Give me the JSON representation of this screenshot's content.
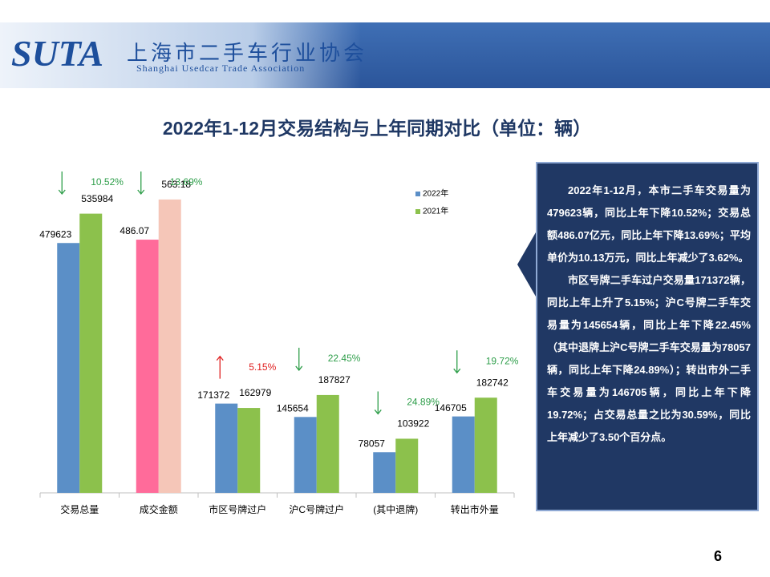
{
  "header": {
    "logo": "SUTA",
    "name": "上海市二手车行业协会",
    "name_en": "Shanghai Usedcar Trade Association"
  },
  "chart_data": {
    "type": "bar",
    "title": "2022年1-12月交易结构与上年同期对比（单位：辆）",
    "categories": [
      "交易总量",
      "成交金额",
      "市区号牌过户",
      "沪C号牌过户",
      "(其中退牌)",
      "转出市外量"
    ],
    "series": [
      {
        "name": "2022年",
        "color": "#5b8fc7",
        "values": [
          479623,
          null,
          171372,
          145654,
          78057,
          146705
        ]
      },
      {
        "name": "2021年",
        "color": "#8cc14c",
        "values": [
          535984,
          null,
          162979,
          187827,
          103922,
          182742
        ]
      },
      {
        "axis": "y2",
        "color": "#ff6b9a",
        "values": [
          null,
          486.07,
          null,
          null,
          null,
          null
        ]
      },
      {
        "axis": "y2",
        "color": "#f5c6b8",
        "values": [
          null,
          563.18,
          null,
          null,
          null,
          null
        ]
      }
    ],
    "ylim": [
      0,
      600000
    ],
    "y2lim": [
      0,
      600
    ],
    "change_labels": [
      "10.52%",
      "13.69%",
      "5.15%",
      "22.45%",
      "24.89%",
      "19.72%"
    ],
    "change_directions": [
      "down",
      "down",
      "up",
      "down",
      "down",
      "down"
    ],
    "change_colors": [
      "#2e9e4a",
      "#2e9e4a",
      "#e02020",
      "#2e9e4a",
      "#2e9e4a",
      "#2e9e4a"
    ]
  },
  "note": {
    "paragraphs": [
      "2022年1-12月，本市二手车交易量为479623辆，同比上年下降10.52%；交易总额486.07亿元，同比上年下降13.69%；平均单价为10.13万元，同比上年减少了3.62%。",
      "市区号牌二手车过户交易量171372辆，同比上年上升了5.15%；沪C号牌二手车交易量为145654辆，同比上年下降22.45%（其中退牌上沪C号牌二手车交易量为78057辆，同比上年下降24.89%）；转出市外二手车交易量为146705辆，同比上年下降19.72%；占交易总量之比为30.59%，同比上年减少了3.50个百分点。"
    ]
  },
  "page_number": "6"
}
